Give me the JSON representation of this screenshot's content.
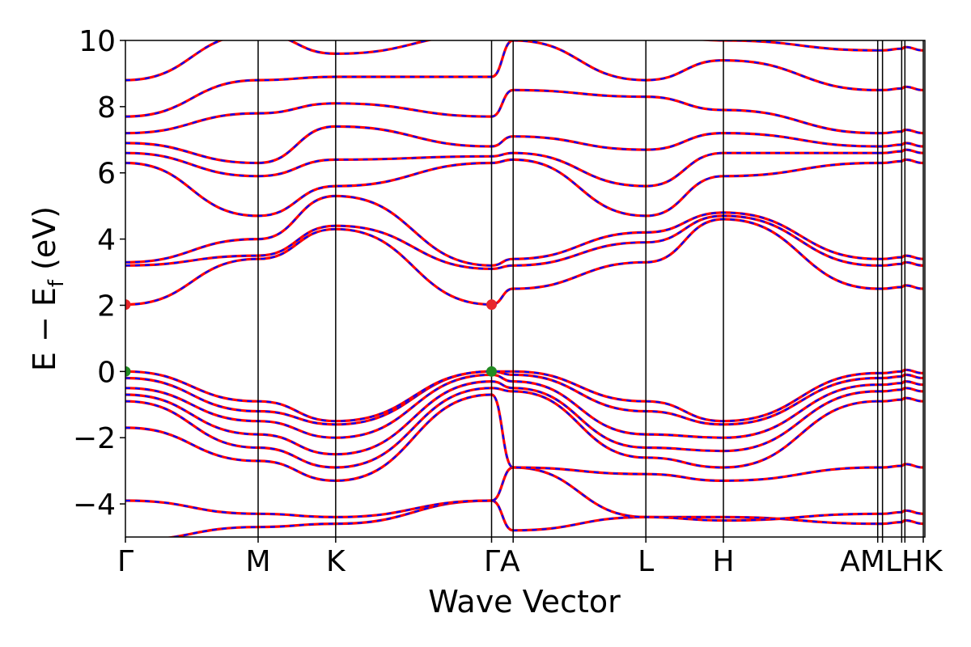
{
  "chart_data": {
    "type": "line",
    "title": "",
    "xlabel": "Wave Vector",
    "ylabel": "E − E_f (eV)",
    "ylabel_parts": {
      "main": "E − E",
      "sub": "f",
      "unit": " (eV)"
    },
    "ylim": [
      -5,
      10
    ],
    "yticks": [
      -4,
      -2,
      0,
      2,
      4,
      6,
      8,
      10
    ],
    "ytick_labels": [
      "−4",
      "−2",
      "0",
      "2",
      "4",
      "6",
      "8",
      "10"
    ],
    "xlim": [
      0,
      1
    ],
    "high_symmetry_points": [
      {
        "label": "Γ",
        "x": 0.0
      },
      {
        "label": "M",
        "x": 0.166
      },
      {
        "label": "K",
        "x": 0.263
      },
      {
        "label": "Γ",
        "x": 0.458
      },
      {
        "label": "A",
        "x": 0.485
      },
      {
        "label": "L",
        "x": 0.651
      },
      {
        "label": "H",
        "x": 0.748
      },
      {
        "label": "A",
        "x": 0.941
      },
      {
        "label": "M",
        "x": 0.947
      },
      {
        "label": "L",
        "x": 0.971
      },
      {
        "label": "H",
        "x": 0.975
      },
      {
        "label": "K",
        "x": 0.998
      }
    ],
    "xtick_display": [
      {
        "text": "Γ",
        "x": 0.0
      },
      {
        "text": "M",
        "x": 0.166
      },
      {
        "text": "K",
        "x": 0.263
      },
      {
        "text": "ΓA",
        "x": 0.471
      },
      {
        "text": "L",
        "x": 0.651
      },
      {
        "text": "H",
        "x": 0.748
      },
      {
        "text": "AMLHK",
        "x": 0.958
      }
    ],
    "band_markers": [
      {
        "name": "VBM",
        "x": 0.0,
        "y": 0.0,
        "color": "#228b22"
      },
      {
        "name": "VBM",
        "x": 0.458,
        "y": 0.0,
        "color": "#228b22"
      },
      {
        "name": "CBM",
        "x": 0.0,
        "y": 2.02,
        "color": "#e8262a"
      },
      {
        "name": "CBM",
        "x": 0.458,
        "y": 2.02,
        "color": "#e8262a"
      }
    ],
    "series_style": [
      {
        "name": "",
        "color": "#ff0000",
        "style": "solid"
      },
      {
        "name": "",
        "color": "#0000ff",
        "style": "dashed"
      }
    ],
    "bands": [
      {
        "x": [
          0.0,
          0.166,
          0.263,
          0.458,
          0.485,
          0.651,
          0.748,
          0.941
        ],
        "y": [
          -5.1,
          -4.7,
          -4.6,
          -3.9,
          -4.8,
          -4.4,
          -4.4,
          -4.6
        ]
      },
      {
        "x": [
          0.0,
          0.166,
          0.263,
          0.458,
          0.485,
          0.651,
          0.748,
          0.941
        ],
        "y": [
          -3.9,
          -4.3,
          -4.4,
          -3.9,
          -2.9,
          -4.4,
          -4.5,
          -4.3
        ]
      },
      {
        "x": [
          0.0,
          0.166,
          0.263,
          0.458,
          0.485,
          0.651,
          0.748,
          0.941
        ],
        "y": [
          -1.7,
          -2.7,
          -3.3,
          -0.7,
          -2.9,
          -3.1,
          -3.3,
          -2.9
        ]
      },
      {
        "x": [
          0.0,
          0.166,
          0.263,
          0.458,
          0.485,
          0.651,
          0.748,
          0.941
        ],
        "y": [
          -0.9,
          -2.3,
          -2.9,
          -0.5,
          -0.6,
          -2.6,
          -2.9,
          -0.9
        ]
      },
      {
        "x": [
          0.0,
          0.166,
          0.263,
          0.458,
          0.485,
          0.651,
          0.748,
          0.941
        ],
        "y": [
          -0.7,
          -1.9,
          -2.5,
          -0.3,
          -0.5,
          -2.3,
          -2.4,
          -0.6
        ]
      },
      {
        "x": [
          0.0,
          0.166,
          0.263,
          0.458,
          0.485,
          0.651,
          0.748,
          0.941
        ],
        "y": [
          -0.5,
          -1.5,
          -2.0,
          -0.1,
          -0.3,
          -1.9,
          -2.0,
          -0.4
        ]
      },
      {
        "x": [
          0.0,
          0.166,
          0.263,
          0.458,
          0.485,
          0.651,
          0.748,
          0.941
        ],
        "y": [
          -0.2,
          -1.2,
          -1.6,
          0.0,
          -0.1,
          -1.2,
          -1.6,
          -0.2
        ]
      },
      {
        "x": [
          0.0,
          0.166,
          0.263,
          0.458,
          0.485,
          0.651,
          0.748,
          0.941
        ],
        "y": [
          0.0,
          -0.9,
          -1.5,
          0.0,
          0.0,
          -0.9,
          -1.5,
          -0.05
        ]
      },
      {
        "x": [
          0.0,
          0.166,
          0.263,
          0.458,
          0.485,
          0.651,
          0.748,
          0.941
        ],
        "y": [
          2.02,
          3.4,
          4.3,
          2.02,
          2.5,
          3.3,
          4.6,
          2.5
        ]
      },
      {
        "x": [
          0.0,
          0.166,
          0.263,
          0.458,
          0.485,
          0.651,
          0.748,
          0.941
        ],
        "y": [
          3.2,
          3.5,
          4.4,
          3.1,
          3.2,
          3.9,
          4.7,
          3.2
        ]
      },
      {
        "x": [
          0.0,
          0.166,
          0.263,
          0.458,
          0.485,
          0.651,
          0.748,
          0.941
        ],
        "y": [
          3.3,
          4.0,
          5.3,
          3.2,
          3.4,
          4.2,
          4.8,
          3.4
        ]
      },
      {
        "x": [
          0.0,
          0.166,
          0.263,
          0.458,
          0.485,
          0.651,
          0.748,
          0.941
        ],
        "y": [
          6.3,
          4.7,
          5.6,
          6.3,
          6.4,
          4.7,
          5.9,
          6.3
        ]
      },
      {
        "x": [
          0.0,
          0.166,
          0.263,
          0.458,
          0.485,
          0.651,
          0.748,
          0.941
        ],
        "y": [
          6.6,
          5.9,
          6.4,
          6.5,
          6.6,
          5.6,
          6.6,
          6.6
        ]
      },
      {
        "x": [
          0.0,
          0.166,
          0.263,
          0.458,
          0.485,
          0.651,
          0.748,
          0.941
        ],
        "y": [
          6.9,
          6.3,
          7.4,
          6.8,
          7.1,
          6.7,
          7.2,
          6.8
        ]
      },
      {
        "x": [
          0.0,
          0.166,
          0.263,
          0.458,
          0.485,
          0.651,
          0.748,
          0.941
        ],
        "y": [
          7.2,
          7.8,
          8.1,
          7.7,
          8.5,
          8.3,
          7.9,
          7.2
        ]
      },
      {
        "x": [
          0.0,
          0.166,
          0.263,
          0.458,
          0.485,
          0.651,
          0.748,
          0.941
        ],
        "y": [
          7.7,
          8.8,
          8.9,
          8.9,
          10.0,
          8.8,
          9.4,
          8.5
        ]
      },
      {
        "x": [
          0.0,
          0.166,
          0.263,
          0.458,
          0.485,
          0.651,
          0.748,
          0.941
        ],
        "y": [
          8.8,
          10.2,
          9.6,
          10.2,
          10.5,
          10.2,
          10.0,
          9.7
        ]
      }
    ]
  }
}
